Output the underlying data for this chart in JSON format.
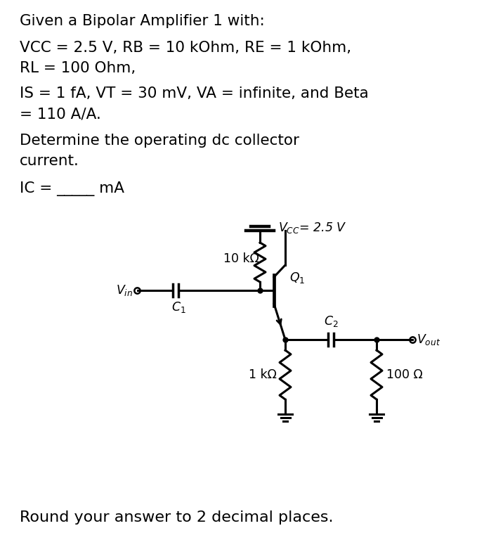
{
  "title_text": "Given a Bipolar Amplifier 1 with:",
  "line1": "VCC = 2.5 V, RB = 10 kOhm, RE = 1 kOhm,",
  "line2": "RL = 100 Ohm,",
  "line3": "IS = 1 fA, VT = 30 mV, VA = infinite, and Beta",
  "line4": "= 110 A/A.",
  "line5": "Determine the operating dc collector",
  "line6": "current.",
  "line7": "IC = _____ mA",
  "line8": "Round your answer to 2 decimal places.",
  "vcc_label": "$V_{CC}$= 2.5 V",
  "rb_label": "10 kΩ",
  "re_label": "1 kΩ",
  "rl_label": "100 Ω",
  "vin_label": "$V_{in}$",
  "vout_label": "$V_{out}$",
  "c1_label": "$C_1$",
  "c2_label": "$C_2$",
  "q1_label": "$Q_1$",
  "bg_color": "#ffffff",
  "text_color": "#000000",
  "font_size_body": 15.5,
  "font_size_circuit": 12.5
}
